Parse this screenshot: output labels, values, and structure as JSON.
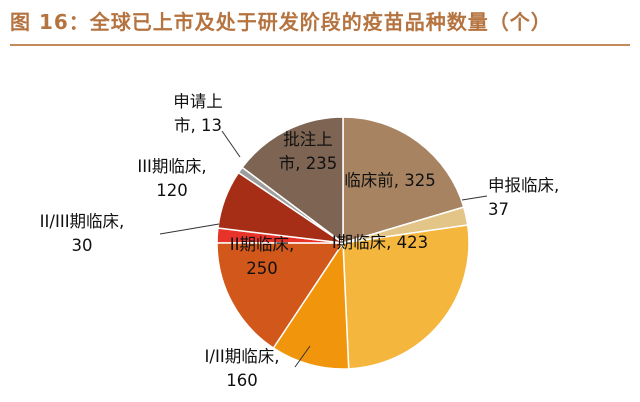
{
  "header": {
    "title": "图 16：全球已上市及处于研发阶段的疫苗品种数量（个）",
    "accent_color": "#c48b58"
  },
  "chart_data": {
    "type": "pie",
    "title": "图 16：全球已上市及处于研发阶段的疫苗品种数量（个）",
    "start": "12 o'clock",
    "direction": "clockwise",
    "slices": [
      {
        "label": "临床前",
        "value": 325,
        "color": "#a78361"
      },
      {
        "label": "申报临床",
        "value": 37,
        "color": "#e2c587"
      },
      {
        "label": "I期临床",
        "value": 423,
        "color": "#f4b63d"
      },
      {
        "label": "I/II期临床",
        "value": 160,
        "color": "#f1950d"
      },
      {
        "label": "II期临床",
        "value": 250,
        "color": "#d1571a"
      },
      {
        "label": "II/III期临床",
        "value": 30,
        "color": "#e8332a"
      },
      {
        "label": "III期临床",
        "value": 120,
        "color": "#a62e16"
      },
      {
        "label": "申请上市",
        "value": 13,
        "color": "#9e9e9e"
      },
      {
        "label": "批注上市",
        "value": 235,
        "color": "#7d6453"
      }
    ],
    "slice_labels": [
      {
        "lines": [
          "临床前, 325"
        ]
      },
      {
        "lines": [
          "申报临床,",
          "37"
        ]
      },
      {
        "lines": [
          "I期临床, 423"
        ]
      },
      {
        "lines": [
          "I/II期临床,",
          "160"
        ]
      },
      {
        "lines": [
          "II期临床,",
          "250"
        ]
      },
      {
        "lines": [
          "II/III期临床,",
          "30"
        ]
      },
      {
        "lines": [
          "III期临床,",
          "120"
        ]
      },
      {
        "lines": [
          "申请上",
          "市, 13"
        ]
      },
      {
        "lines": [
          "批注上",
          "市, 235"
        ]
      }
    ]
  }
}
